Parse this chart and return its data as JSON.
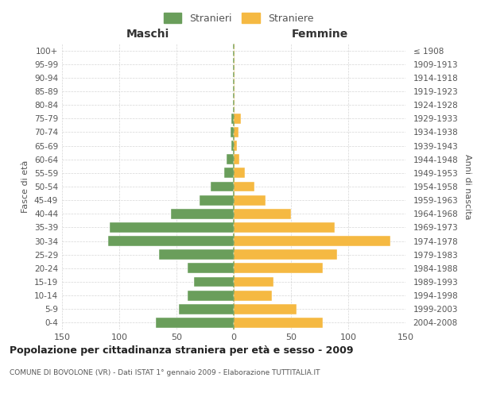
{
  "age_groups": [
    "100+",
    "95-99",
    "90-94",
    "85-89",
    "80-84",
    "75-79",
    "70-74",
    "65-69",
    "60-64",
    "55-59",
    "50-54",
    "45-49",
    "40-44",
    "35-39",
    "30-34",
    "25-29",
    "20-24",
    "15-19",
    "10-14",
    "5-9",
    "0-4"
  ],
  "birth_years": [
    "≤ 1908",
    "1909-1913",
    "1914-1918",
    "1919-1923",
    "1924-1928",
    "1929-1933",
    "1934-1938",
    "1939-1943",
    "1944-1948",
    "1949-1953",
    "1954-1958",
    "1959-1963",
    "1964-1968",
    "1969-1973",
    "1974-1978",
    "1979-1983",
    "1984-1988",
    "1989-1993",
    "1994-1998",
    "1999-2003",
    "2004-2008"
  ],
  "males": [
    0,
    0,
    0,
    0,
    0,
    2,
    3,
    2,
    6,
    8,
    20,
    30,
    55,
    108,
    110,
    65,
    40,
    35,
    40,
    48,
    68
  ],
  "females": [
    0,
    0,
    0,
    0,
    0,
    6,
    4,
    3,
    5,
    10,
    18,
    28,
    50,
    88,
    137,
    90,
    78,
    35,
    33,
    55,
    78
  ],
  "male_color": "#6a9e5b",
  "female_color": "#f5b942",
  "background_color": "#ffffff",
  "grid_color": "#cccccc",
  "title": "Popolazione per cittadinanza straniera per età e sesso - 2009",
  "subtitle": "COMUNE DI BOVOLONE (VR) - Dati ISTAT 1° gennaio 2009 - Elaborazione TUTTITALIA.IT",
  "ylabel_left": "Fasce di età",
  "ylabel_right": "Anni di nascita",
  "xlabel_left": "Maschi",
  "xlabel_right": "Femmine",
  "legend_male": "Stranieri",
  "legend_female": "Straniere",
  "xlim": 150
}
